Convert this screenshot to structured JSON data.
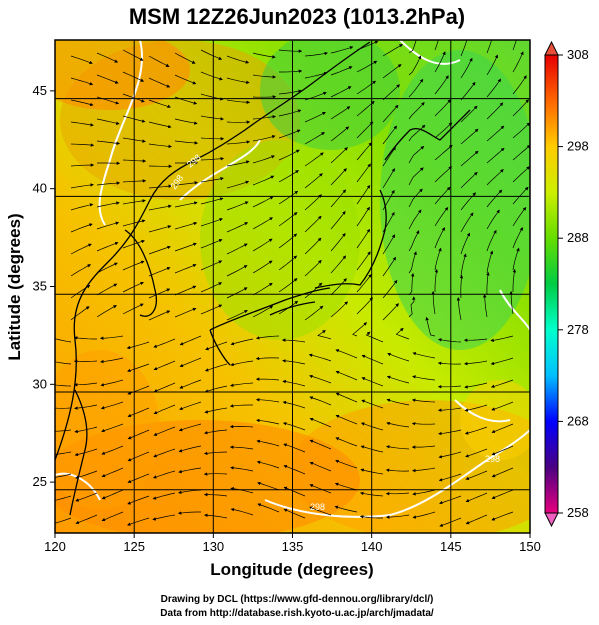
{
  "title": "MSM 12Z26Jun2023 (1013.2hPa)",
  "x_axis": {
    "label": "Longitude (degrees)",
    "min": 120,
    "max": 150,
    "ticks": [
      "120",
      "125",
      "130",
      "135",
      "140",
      "145",
      "150"
    ]
  },
  "y_axis": {
    "label": "Latitude (degrees)",
    "min": 22.4,
    "max": 47.6,
    "ticks": [
      "25",
      "30",
      "35",
      "40",
      "45"
    ]
  },
  "colorbar": {
    "min": 258,
    "max": 308,
    "ticks": [
      "308",
      "298",
      "288",
      "278",
      "268",
      "258"
    ],
    "colors": [
      "#e6007e",
      "#4b0082",
      "#0000ff",
      "#00bfff",
      "#00ffcc",
      "#00cc44",
      "#66dd00",
      "#ccee00",
      "#ffcc00",
      "#ff6600",
      "#e60000"
    ]
  },
  "contour_labels": [
    "298",
    "298",
    "298",
    "298"
  ],
  "credits": {
    "line1": "Drawing by DCL (https://www.gfd-dennou.org/library/dcl/)",
    "line2": "Data from http://database.rish.kyoto-u.ac.jp/arch/jmadata/"
  }
}
